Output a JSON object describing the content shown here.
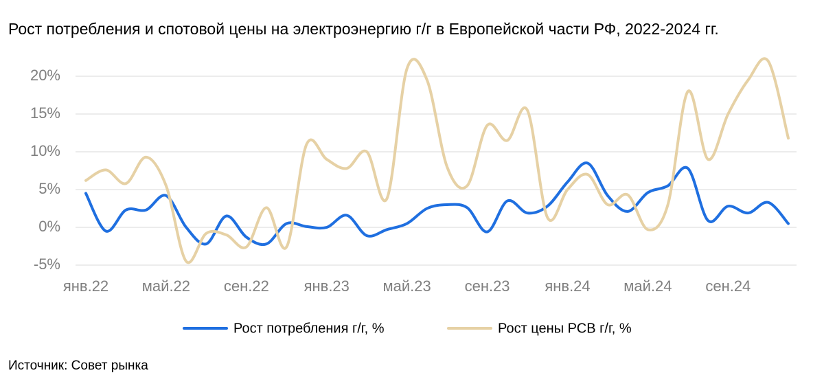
{
  "chart_data": {
    "type": "line",
    "title": "Рост потребления и спотовой цены на электроэнергию г/г в Европейской части РФ, 2022-2024 гг.",
    "source": "Источник: Совет рынка",
    "categories": [
      "янв.22",
      null,
      null,
      null,
      "май.22",
      null,
      null,
      null,
      "сен.22",
      null,
      null,
      null,
      "янв.23",
      null,
      null,
      null,
      "май.23",
      null,
      null,
      null,
      "сен.23",
      null,
      null,
      null,
      "янв.24",
      null,
      null,
      null,
      "май.24",
      null,
      null,
      null,
      "сен.24",
      null,
      null,
      null
    ],
    "series": [
      {
        "name": "Рост потребления г/г, %",
        "color": "#1f6fe0",
        "values": [
          4.5,
          -0.5,
          2.3,
          2.3,
          4.2,
          0,
          -2.2,
          1.5,
          -1.3,
          -2.2,
          0.5,
          0.1,
          0,
          1.6,
          -1.1,
          -0.3,
          0.5,
          2.5,
          3,
          2.6,
          -0.6,
          3.5,
          1.9,
          2.8,
          6,
          8.5,
          4.2,
          2.1,
          4.6,
          5.5,
          7.8,
          0.9,
          2.8,
          1.9,
          3.3,
          0.5
        ]
      },
      {
        "name": "Рост цены РСВ г/г, %",
        "color": "#e6d1a5",
        "values": [
          6.2,
          7.6,
          5.8,
          9.3,
          5.5,
          -4.5,
          -0.8,
          -1.0,
          -2.6,
          2.6,
          -2.6,
          11,
          9,
          7.8,
          10,
          3.8,
          21,
          19.5,
          8,
          5.5,
          13.5,
          11.5,
          15.5,
          1.3,
          5,
          7,
          3,
          4.3,
          -0.3,
          3,
          18,
          9,
          15,
          19.5,
          22,
          11.8
        ]
      }
    ],
    "ylim": [
      -5,
      22.5
    ],
    "yticks": [
      {
        "value": -5,
        "label": "-5%"
      },
      {
        "value": 0,
        "label": "0%"
      },
      {
        "value": 5,
        "label": "5%"
      },
      {
        "value": 10,
        "label": "10%"
      },
      {
        "value": 15,
        "label": "15%"
      },
      {
        "value": 20,
        "label": "20%"
      }
    ],
    "grid": true
  }
}
